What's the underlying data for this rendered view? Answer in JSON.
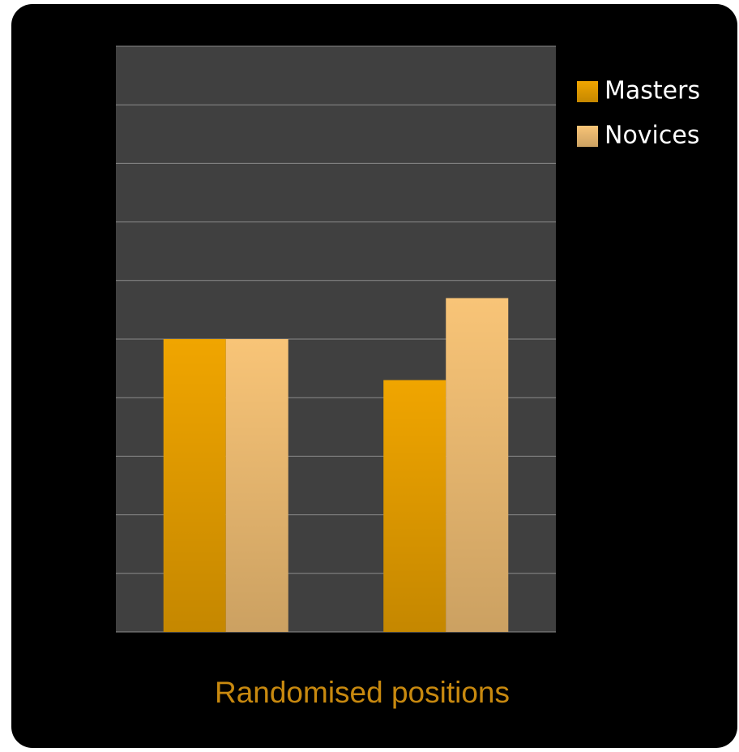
{
  "chart_data": {
    "type": "bar",
    "x_label": "Randomised positions",
    "categories": [
      null,
      null
    ],
    "series": [
      {
        "name": "Masters",
        "color": "#f0a500",
        "values": [
          5.0,
          4.3
        ]
      },
      {
        "name": "Novices",
        "color": "#f8c477",
        "values": [
          5.0,
          5.7
        ]
      }
    ],
    "ylim": [
      0,
      10
    ],
    "yticks": [
      0,
      1,
      2,
      3,
      4,
      5,
      6,
      7,
      8,
      9,
      10
    ],
    "grid": true,
    "legend": "right"
  }
}
